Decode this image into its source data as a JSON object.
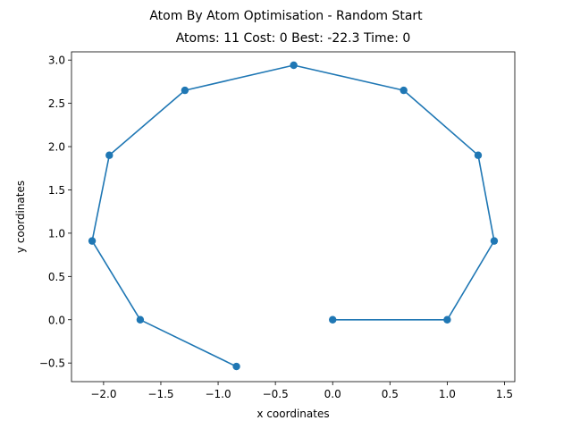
{
  "chart_data": {
    "type": "line",
    "suptitle": "Atom By Atom Optimisation - Random Start",
    "title": "Atoms: 11 Cost: 0 Best: -22.3 Time: 0",
    "xlabel": "x coordinates",
    "ylabel": "y coordinates",
    "xlim": [
      -2.28,
      1.59
    ],
    "ylim": [
      -0.715,
      3.095
    ],
    "xticks": [
      -2.0,
      -1.5,
      -1.0,
      -0.5,
      0.0,
      0.5,
      1.0,
      1.5
    ],
    "xtick_labels": [
      "−2.0",
      "−1.5",
      "−1.0",
      "−0.5",
      "0.0",
      "0.5",
      "1.0",
      "1.5"
    ],
    "yticks": [
      -0.5,
      0.0,
      0.5,
      1.0,
      1.5,
      2.0,
      2.5,
      3.0
    ],
    "ytick_labels": [
      "−0.5",
      "0.0",
      "0.5",
      "1.0",
      "1.5",
      "2.0",
      "2.5",
      "3.0"
    ],
    "grid": false,
    "series": [
      {
        "color": "#1f77b4",
        "marker": "circle",
        "x": [
          0.0,
          1.0,
          1.41,
          1.27,
          0.62,
          -0.34,
          -1.29,
          -1.95,
          -2.1,
          -1.68,
          -0.84
        ],
        "y": [
          0.0,
          0.0,
          0.91,
          1.9,
          2.65,
          2.94,
          2.65,
          1.9,
          0.91,
          0.0,
          -0.54
        ]
      }
    ]
  }
}
